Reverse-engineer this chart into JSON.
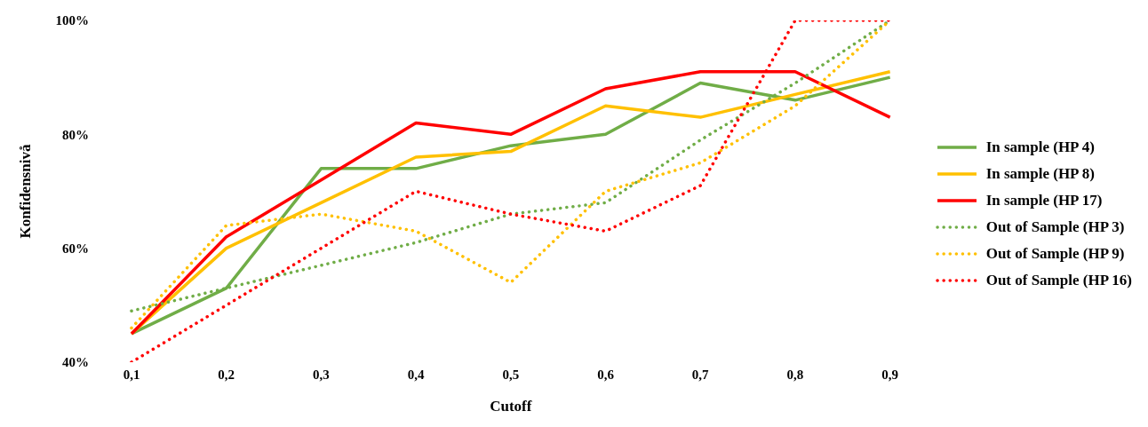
{
  "chart_data": {
    "type": "line",
    "xlabel": "Cutoff",
    "ylabel": "Konfidensnivå",
    "categories": [
      "0,1",
      "0,2",
      "0,3",
      "0,4",
      "0,5",
      "0,6",
      "0,7",
      "0,8",
      "0,9"
    ],
    "ylim": [
      40,
      100
    ],
    "yticks": [
      {
        "value": 40,
        "label": "40%"
      },
      {
        "value": 60,
        "label": "60%"
      },
      {
        "value": 80,
        "label": "80%"
      },
      {
        "value": 100,
        "label": "100%"
      }
    ],
    "grid": false,
    "legend": "right",
    "marker": "none",
    "series": [
      {
        "name": "In sample (HP 4)",
        "color": "#70ad47",
        "line_style": "solid",
        "values": [
          45,
          53,
          74,
          74,
          78,
          80,
          89,
          86,
          90
        ]
      },
      {
        "name": "In sample (HP 8)",
        "color": "#ffc000",
        "line_style": "solid",
        "values": [
          45,
          60,
          68,
          76,
          77,
          85,
          83,
          87,
          91
        ]
      },
      {
        "name": "In sample (HP 17)",
        "color": "#ff0000",
        "line_style": "solid",
        "values": [
          45,
          62,
          72,
          82,
          80,
          88,
          91,
          91,
          83
        ]
      },
      {
        "name": "Out of Sample (HP 3)",
        "color": "#70ad47",
        "line_style": "dotted",
        "values": [
          49,
          53,
          57,
          61,
          66,
          68,
          79,
          89,
          100
        ]
      },
      {
        "name": "Out of Sample (HP 9)",
        "color": "#ffc000",
        "line_style": "dotted",
        "values": [
          46,
          64,
          66,
          63,
          54,
          70,
          75,
          85,
          100
        ]
      },
      {
        "name": "Out of Sample (HP 16)",
        "color": "#ff0000",
        "line_style": "dotted",
        "values": [
          40,
          50,
          60,
          70,
          66,
          63,
          71,
          100,
          100
        ]
      }
    ]
  }
}
